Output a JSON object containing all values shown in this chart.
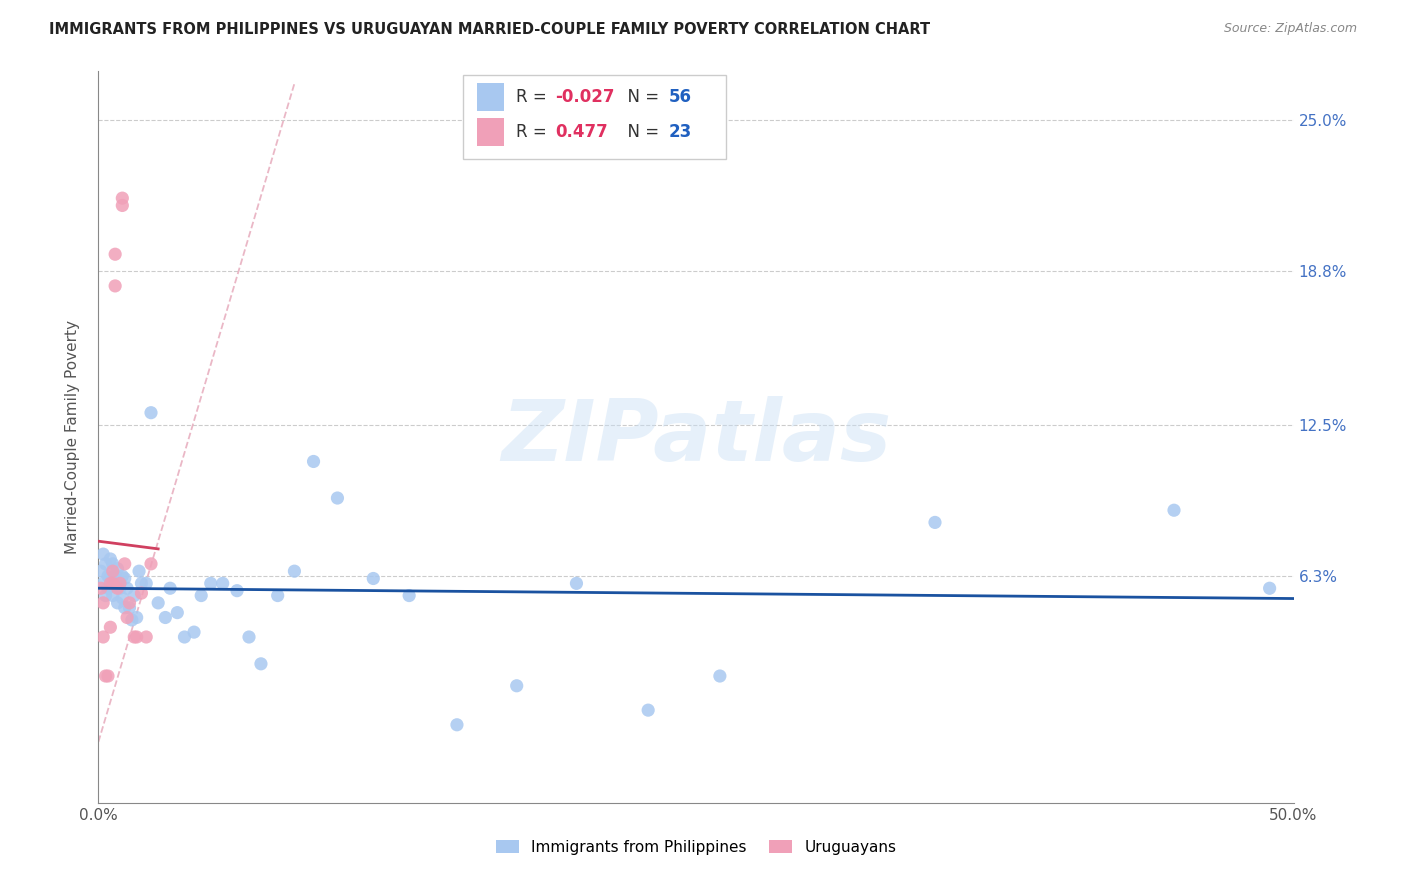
{
  "title": "IMMIGRANTS FROM PHILIPPINES VS URUGUAYAN MARRIED-COUPLE FAMILY POVERTY CORRELATION CHART",
  "source": "Source: ZipAtlas.com",
  "ylabel": "Married-Couple Family Poverty",
  "xlim": [
    0.0,
    0.5
  ],
  "ylim": [
    -0.03,
    0.27
  ],
  "blue_color": "#a8c8f0",
  "pink_color": "#f0a0b8",
  "trend_blue_color": "#1a52a0",
  "trend_pink_color": "#d04060",
  "diag_color": "#e8b0c0",
  "legend_blue_r": "-0.027",
  "legend_blue_n": "56",
  "legend_pink_r": "0.477",
  "legend_pink_n": "23",
  "watermark": "ZIPatlas",
  "ytick_vals": [
    0.063,
    0.125,
    0.188,
    0.25
  ],
  "ytick_labels": [
    "6.3%",
    "12.5%",
    "18.8%",
    "25.0%"
  ],
  "blue_scatter_x": [
    0.001,
    0.002,
    0.002,
    0.003,
    0.003,
    0.004,
    0.004,
    0.005,
    0.005,
    0.006,
    0.006,
    0.007,
    0.007,
    0.008,
    0.008,
    0.009,
    0.009,
    0.01,
    0.01,
    0.011,
    0.011,
    0.012,
    0.013,
    0.014,
    0.015,
    0.016,
    0.017,
    0.018,
    0.02,
    0.022,
    0.025,
    0.028,
    0.03,
    0.033,
    0.036,
    0.04,
    0.043,
    0.047,
    0.052,
    0.058,
    0.063,
    0.068,
    0.075,
    0.082,
    0.09,
    0.1,
    0.115,
    0.13,
    0.15,
    0.175,
    0.2,
    0.23,
    0.26,
    0.35,
    0.45,
    0.49
  ],
  "blue_scatter_y": [
    0.065,
    0.06,
    0.072,
    0.055,
    0.068,
    0.058,
    0.063,
    0.062,
    0.07,
    0.055,
    0.068,
    0.06,
    0.063,
    0.052,
    0.066,
    0.058,
    0.06,
    0.054,
    0.063,
    0.05,
    0.062,
    0.058,
    0.05,
    0.045,
    0.055,
    0.046,
    0.065,
    0.06,
    0.06,
    0.13,
    0.052,
    0.046,
    0.058,
    0.048,
    0.038,
    0.04,
    0.055,
    0.06,
    0.06,
    0.057,
    0.038,
    0.027,
    0.055,
    0.065,
    0.11,
    0.095,
    0.062,
    0.055,
    0.002,
    0.018,
    0.06,
    0.008,
    0.022,
    0.085,
    0.09,
    0.058
  ],
  "pink_scatter_x": [
    0.001,
    0.002,
    0.002,
    0.003,
    0.004,
    0.005,
    0.005,
    0.006,
    0.006,
    0.007,
    0.007,
    0.008,
    0.009,
    0.01,
    0.01,
    0.011,
    0.012,
    0.013,
    0.015,
    0.016,
    0.018,
    0.02,
    0.022
  ],
  "pink_scatter_y": [
    0.058,
    0.052,
    0.038,
    0.022,
    0.022,
    0.06,
    0.042,
    0.065,
    0.06,
    0.195,
    0.182,
    0.058,
    0.06,
    0.218,
    0.215,
    0.068,
    0.046,
    0.052,
    0.038,
    0.038,
    0.056,
    0.038,
    0.068
  ]
}
